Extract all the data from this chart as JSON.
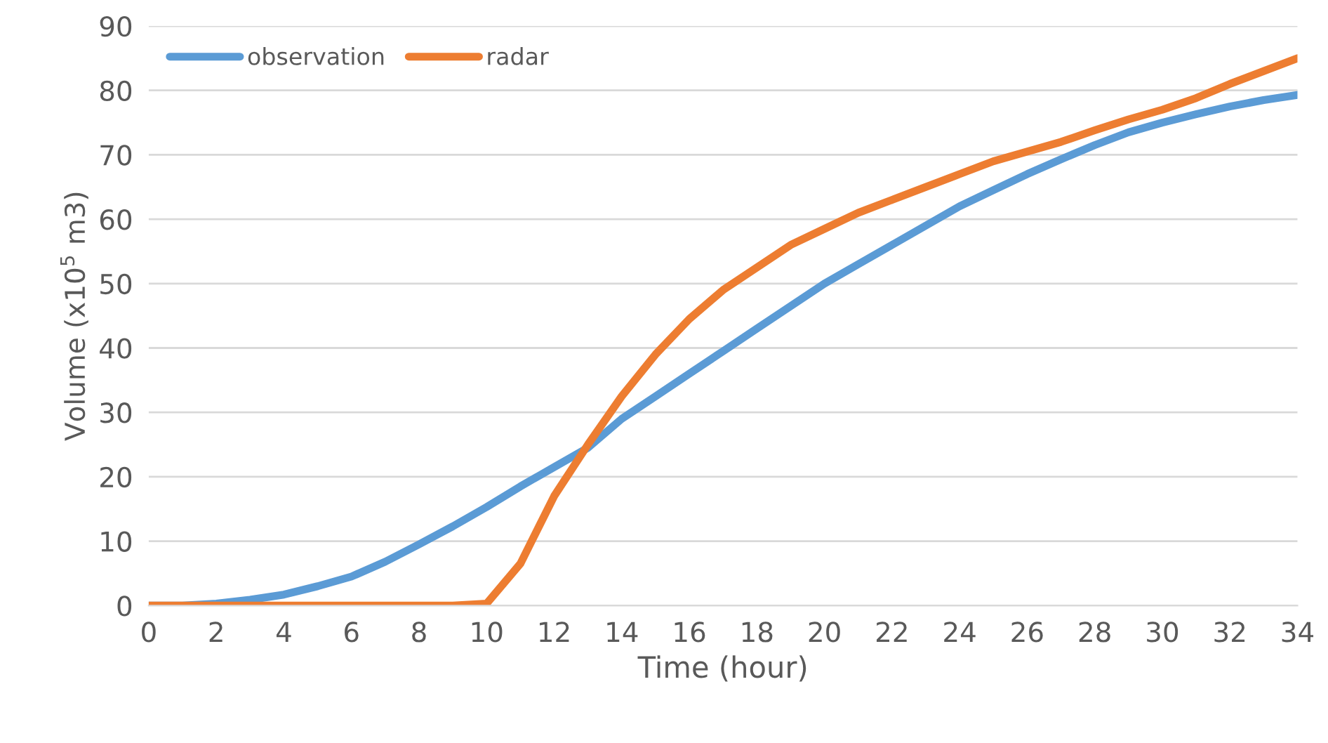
{
  "chart_data": {
    "type": "line",
    "xlabel": "Time (hour)",
    "ylabel": "Volume (x10$^{5}$ m3)",
    "x": [
      0,
      1,
      2,
      3,
      4,
      5,
      6,
      7,
      8,
      9,
      10,
      11,
      12,
      13,
      14,
      15,
      16,
      17,
      18,
      19,
      20,
      21,
      22,
      23,
      24,
      25,
      26,
      27,
      28,
      29,
      30,
      31,
      32,
      33,
      34
    ],
    "series": [
      {
        "name": "observation",
        "color": "#5b9bd5",
        "values": [
          0,
          0,
          0.3,
          0.9,
          1.7,
          3,
          4.5,
          6.8,
          9.5,
          12.3,
          15.3,
          18.5,
          21.5,
          24.5,
          29,
          32.5,
          36,
          39.5,
          43,
          46.5,
          50,
          53,
          56,
          59,
          62,
          64.5,
          67,
          69.3,
          71.5,
          73.5,
          75,
          76.3,
          77.5,
          78.5,
          79.3
        ]
      },
      {
        "name": "radar",
        "color": "#ed7d31",
        "values": [
          0,
          0,
          0,
          0,
          0,
          0,
          0,
          0,
          0,
          0,
          0.3,
          6.5,
          17,
          25,
          32.5,
          39,
          44.5,
          49,
          52.5,
          56,
          58.5,
          61,
          63,
          65,
          67,
          69,
          70.5,
          72,
          73.8,
          75.5,
          77,
          78.8,
          81,
          83,
          85
        ]
      }
    ],
    "xlim": [
      0,
      34
    ],
    "xticks": [
      0,
      2,
      4,
      6,
      8,
      10,
      12,
      14,
      16,
      18,
      20,
      22,
      24,
      26,
      28,
      30,
      32,
      34
    ],
    "ylim": [
      0,
      90
    ],
    "yticks": [
      0,
      10,
      20,
      30,
      40,
      50,
      60,
      70,
      80,
      90
    ],
    "grid": "y",
    "legend": "top left",
    "marker": "none",
    "line_style": "solid"
  }
}
